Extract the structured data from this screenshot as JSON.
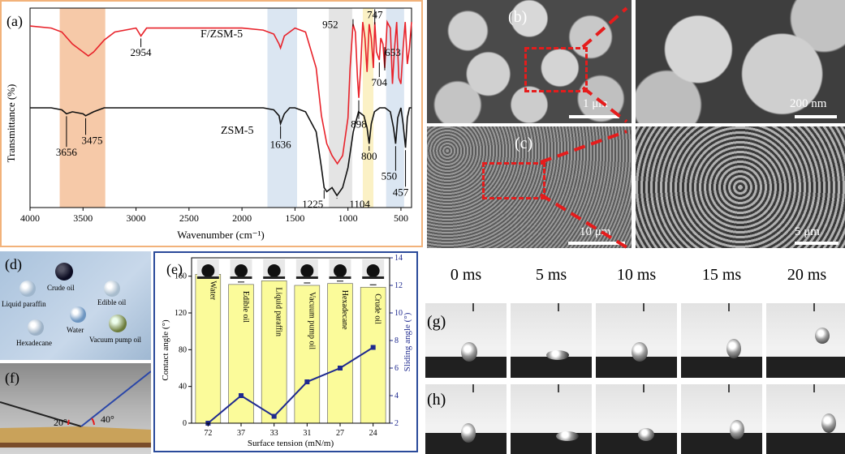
{
  "panel_a": {
    "label": "(a)",
    "colors": {
      "red": "#e8222a",
      "black": "#111111",
      "orange_band": "#f6c9a8",
      "blue_band": "#dbe6f2",
      "yellow_band": "#fbf1c5",
      "gray_band": "#e4e4e4",
      "border": "#f2b27a"
    },
    "chart_data": {
      "type": "line",
      "title": "",
      "xlabel": "Wavenumber (cm⁻¹)",
      "ylabel": "Transmittance (%)",
      "xlim": [
        4000,
        400
      ],
      "x_ticks": [
        "4000",
        "3500",
        "3000",
        "2500",
        "2000",
        "1500",
        "1000",
        "500"
      ],
      "series": [
        {
          "name": "F/ZSM-5",
          "color": "#e8222a",
          "x": [
            4000,
            3800,
            3700,
            3600,
            3500,
            3450,
            3400,
            3300,
            3200,
            3000,
            2954,
            2900,
            2500,
            2000,
            1800,
            1700,
            1650,
            1636,
            1600,
            1500,
            1400,
            1300,
            1250,
            1200,
            1150,
            1100,
            1050,
            1000,
            980,
            952,
            930,
            910,
            898,
            880,
            860,
            840,
            820,
            800,
            780,
            760,
            747,
            730,
            704,
            690,
            670,
            653,
            630,
            600,
            580,
            560,
            540,
            520,
            500,
            480,
            460,
            440,
            420,
            400
          ],
          "y": [
            0.91,
            0.9,
            0.88,
            0.82,
            0.78,
            0.76,
            0.78,
            0.84,
            0.88,
            0.9,
            0.86,
            0.9,
            0.9,
            0.9,
            0.89,
            0.87,
            0.82,
            0.8,
            0.86,
            0.9,
            0.88,
            0.7,
            0.46,
            0.32,
            0.26,
            0.22,
            0.26,
            0.45,
            0.7,
            0.92,
            0.88,
            0.65,
            0.55,
            0.7,
            0.93,
            0.85,
            0.68,
            0.92,
            0.85,
            0.7,
            0.93,
            0.78,
            0.74,
            0.85,
            0.82,
            0.7,
            0.93,
            0.9,
            0.62,
            0.8,
            0.93,
            0.65,
            0.62,
            0.8,
            0.93,
            0.72,
            0.8,
            0.93
          ]
        },
        {
          "name": "ZSM-5",
          "color": "#111111",
          "x": [
            4000,
            3800,
            3700,
            3656,
            3600,
            3500,
            3475,
            3400,
            3300,
            3000,
            2500,
            2000,
            1800,
            1700,
            1650,
            1636,
            1600,
            1550,
            1500,
            1400,
            1300,
            1250,
            1225,
            1200,
            1150,
            1104,
            1050,
            1000,
            950,
            900,
            850,
            820,
            800,
            780,
            750,
            700,
            650,
            600,
            570,
            550,
            530,
            500,
            480,
            457,
            440,
            420,
            400
          ],
          "y": [
            0.5,
            0.5,
            0.49,
            0.47,
            0.48,
            0.47,
            0.46,
            0.48,
            0.5,
            0.5,
            0.5,
            0.5,
            0.5,
            0.49,
            0.46,
            0.42,
            0.47,
            0.5,
            0.5,
            0.48,
            0.38,
            0.2,
            0.1,
            0.08,
            0.1,
            0.06,
            0.1,
            0.2,
            0.38,
            0.48,
            0.46,
            0.4,
            0.32,
            0.42,
            0.48,
            0.5,
            0.5,
            0.48,
            0.4,
            0.32,
            0.45,
            0.5,
            0.42,
            0.3,
            0.45,
            0.5,
            0.5
          ]
        }
      ],
      "annotations": [
        "2954",
        "952",
        "747",
        "653",
        "898",
        "704",
        "3656",
        "3475",
        "1636",
        "800",
        "550",
        "457",
        "1225",
        "1104"
      ]
    }
  },
  "panel_b": {
    "label": "(b)",
    "scale_left": "1 μm",
    "scale_right": "200 nm"
  },
  "panel_c": {
    "label": "(c)",
    "scale_left": "10 μm",
    "scale_right": "5 μm"
  },
  "panel_d": {
    "label": "(d)",
    "droplets": [
      "Crude oil",
      "Liquid paraffin",
      "Edible oil",
      "Water",
      "Hexadecane",
      "Vacuum pump oil"
    ]
  },
  "panel_e": {
    "label": "(e)",
    "colors": {
      "bar": "#fbfb9a",
      "line": "#1f2a8f",
      "border": "#2a4a9a"
    },
    "chart_data": {
      "type": "bar",
      "categories": [
        "Water",
        "Edible oil",
        "Liquid paraffin",
        "Vacuum pump oil",
        "Hexadecane",
        "Crude oil"
      ],
      "x_tick_labels": [
        "72",
        "37",
        "33",
        "31",
        "27",
        "24"
      ],
      "xlabel": "Surface tension (mN/m)",
      "ylabel_left": "Contact angle (°)",
      "ylabel_right": "Sliding angle (°)",
      "ylim_left": [
        0,
        180
      ],
      "ylim_right": [
        2,
        14
      ],
      "yticks_left": [
        "0",
        "40",
        "80",
        "120",
        "160"
      ],
      "yticks_right": [
        "2",
        "4",
        "6",
        "8",
        "10",
        "12",
        "14"
      ],
      "series": [
        {
          "name": "Contact angle",
          "axis": "left",
          "values": [
            162,
            151,
            155,
            150,
            152,
            148
          ]
        },
        {
          "name": "Sliding angle",
          "axis": "right",
          "values": [
            2,
            4,
            2.5,
            5,
            6,
            7.5
          ]
        }
      ]
    }
  },
  "panel_f": {
    "label": "(f)",
    "angle_left": "20°",
    "angle_right": "40°"
  },
  "panel_g": {
    "label": "(g)"
  },
  "panel_h": {
    "label": "(h)"
  },
  "time_labels": [
    "0 ms",
    "5 ms",
    "10 ms",
    "15 ms",
    "20 ms"
  ]
}
